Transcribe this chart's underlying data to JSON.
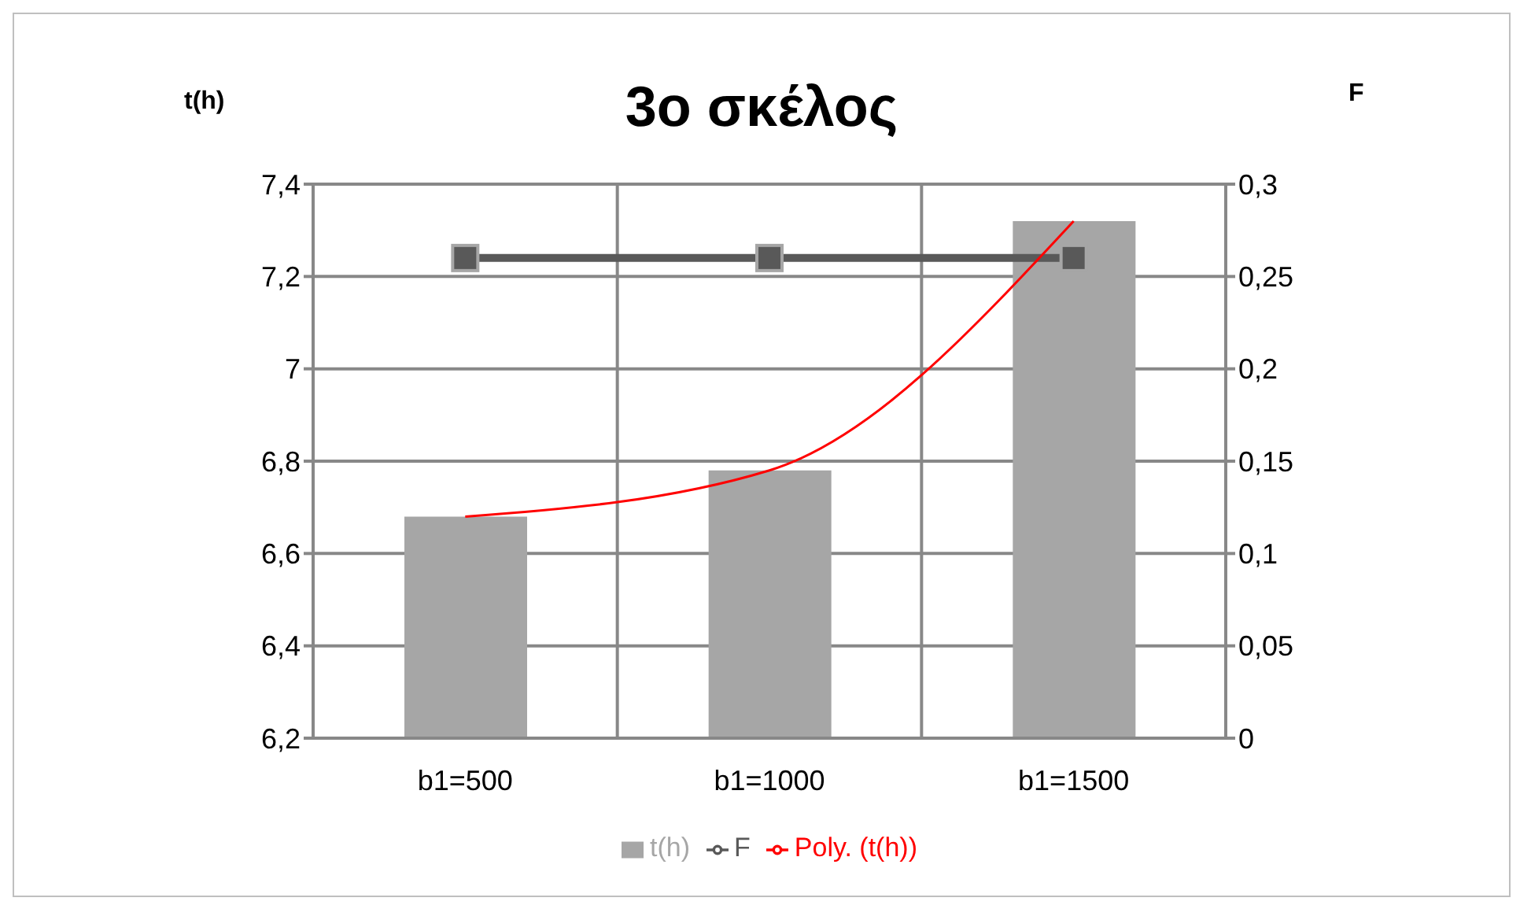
{
  "chart_data": {
    "type": "bar",
    "title": "3ο σκέλος",
    "ylabel": "t(h)",
    "y2label": "F",
    "categories": [
      "b1=500",
      "b1=1000",
      "b1=1500"
    ],
    "series": [
      {
        "name": "t(h)",
        "color": "#a6a6a6",
        "values": [
          6.68,
          6.78,
          7.32
        ]
      },
      {
        "name": "F",
        "type": "line",
        "axis": "y2",
        "color": "#595959",
        "marker": "square",
        "values": [
          0.26,
          0.26,
          0.26
        ]
      },
      {
        "name": "Poly. (t(h))",
        "type": "line",
        "color": "#ff0000",
        "marker": "none",
        "values": [
          6.68,
          6.78,
          7.32
        ]
      }
    ],
    "ylim": [
      6.2,
      7.4
    ],
    "yticks": [
      {
        "value": 6.2,
        "label": "6,2"
      },
      {
        "value": 6.4,
        "label": "6,4"
      },
      {
        "value": 6.6,
        "label": "6,6"
      },
      {
        "value": 6.8,
        "label": "6,8"
      },
      {
        "value": 7,
        "label": "7"
      },
      {
        "value": 7.2,
        "label": "7,2"
      },
      {
        "value": 7.4,
        "label": "7,4"
      }
    ],
    "y2lim": [
      0,
      0.3
    ],
    "y2ticks": [
      0,
      {
        "value": 0.05,
        "label": "0,05"
      },
      {
        "value": 0.1,
        "label": "0,1"
      },
      {
        "value": 0.15,
        "label": "0,15"
      },
      {
        "value": 0.2,
        "label": "0,2"
      },
      {
        "value": 0.25,
        "label": "0,25"
      },
      {
        "value": 0.3,
        "label": "0,3"
      }
    ],
    "grid": true,
    "legend": "bottom"
  }
}
